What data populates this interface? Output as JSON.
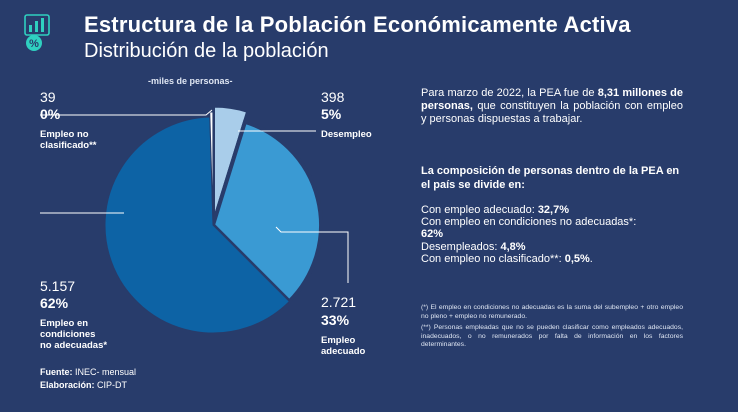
{
  "header": {
    "title": "Estructura de la Población Económicamente Activa",
    "subtitle": "Distribución de la población"
  },
  "chart_data": {
    "type": "pie",
    "units_note": "-miles de personas-",
    "slices": [
      {
        "name": "Desempleo",
        "value": 398,
        "value_label": "398",
        "percent_label": "5%",
        "color": "#a9cdea"
      },
      {
        "name": "Empleo adecuado",
        "value": 2721,
        "value_label": "2.721",
        "percent_label": "33%",
        "color": "#3a9ad3"
      },
      {
        "name": "Empleo en condiciones no adecuadas*",
        "value": 5157,
        "value_label": "5.157",
        "percent_label": "62%",
        "color": "#0d63a5"
      },
      {
        "name": "Empleo no clasificado**",
        "value": 39,
        "value_label": "39",
        "percent_label": "0%",
        "color": "#ffffff"
      }
    ]
  },
  "labels": {
    "noclas_num": "39",
    "noclas_pct": "0%",
    "noclas_l1": "Empleo no",
    "noclas_l2": "clasificado**",
    "des_num": "398",
    "des_pct": "5%",
    "des_l1": "Desempleo",
    "inad_num": "5.157",
    "inad_pct": "62%",
    "inad_l1": "Empleo en",
    "inad_l2": "condiciones",
    "inad_l3": "no adecuadas*",
    "adec_num": "2.721",
    "adec_pct": "33%",
    "adec_l1": "Empleo",
    "adec_l2": "adecuado"
  },
  "text": {
    "p1_a": "Para  marzo de 2022, la PEA fue de ",
    "p1_b": "8,31 millones de personas,",
    "p1_c": " que constituyen la población con empleo y personas dispuestas a trabajar.",
    "p2": "La composición de personas dentro de la PEA en el país se divide en:",
    "c1_a": "Con empleo adecuado: ",
    "c1_b": "32,7%",
    "c2_a": "Con empleo en condiciones no adecuadas*: ",
    "c2_b": "62%",
    "c3_a": "Desempleados: ",
    "c3_b": "4,8%",
    "c4_a": "Con empleo no clasificado**: ",
    "c4_b": "0,5%",
    "c4_c": ".",
    "note1": "(*) El empleo en condiciones no adecuadas es la suma del subempleo + otro empleo no pleno + empleo no remunerado.",
    "note2": "(**) Personas empleadas que no se pueden clasificar como empleados adecuados, inadecuados, o no remunerados por falta de información en los factores determinantes."
  },
  "footer": {
    "fuente_label": "Fuente:",
    "fuente_value": " INEC- mensual",
    "elab_label": "Elaboración:",
    "elab_value": " CIP-DT"
  },
  "colors": {
    "background": "#283c6b",
    "accent": "#2fd0c0"
  }
}
